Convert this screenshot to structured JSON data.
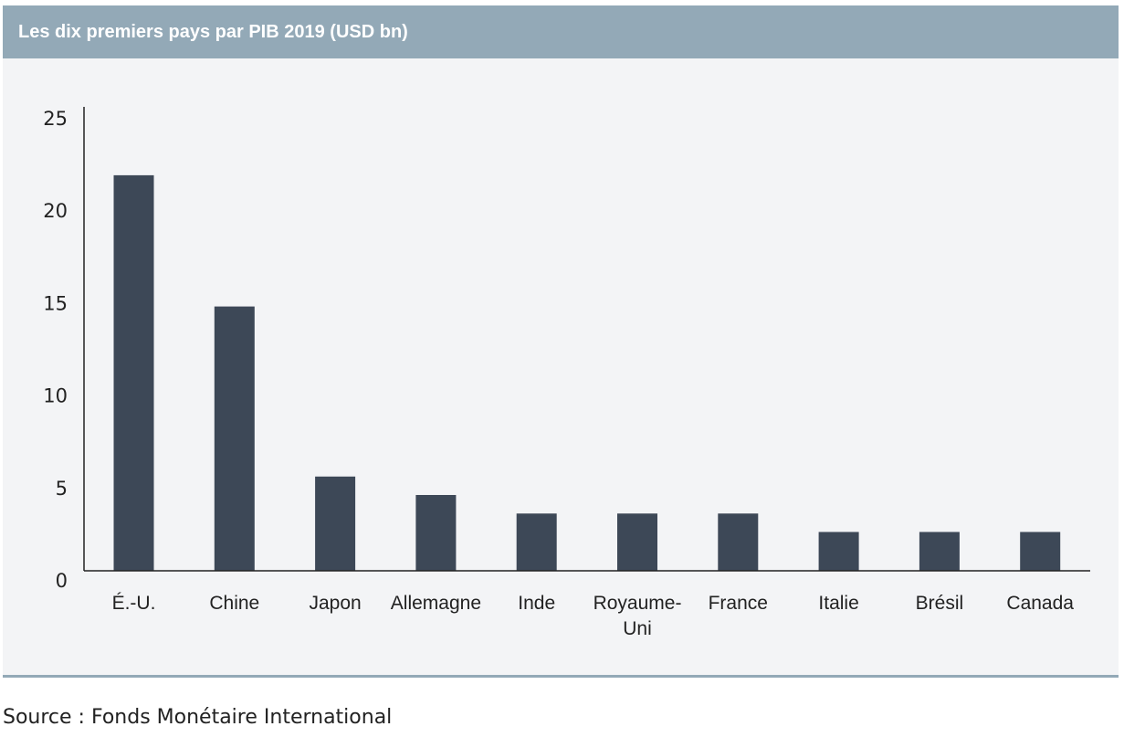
{
  "title": "Les dix premiers pays par PIB 2019 (USD bn)",
  "source": "Source : Fonds Monétaire International",
  "colors": {
    "header": "#93a9b7",
    "panel": "#f3f4f6",
    "bar": "#3d4857",
    "axis": "#222222"
  },
  "chart_data": {
    "type": "bar",
    "categories": [
      "É.-U.",
      "Chine",
      "Japon",
      "Allemagne",
      "Inde",
      "Royaume-Uni",
      "France",
      "Italie",
      "Brésil",
      "Canada"
    ],
    "category_lines": [
      [
        "É.-U."
      ],
      [
        "Chine"
      ],
      [
        "Japon"
      ],
      [
        "Allemagne"
      ],
      [
        "Inde"
      ],
      [
        "Royaume-",
        "Uni"
      ],
      [
        "France"
      ],
      [
        "Italie"
      ],
      [
        "Brésil"
      ],
      [
        "Canada"
      ]
    ],
    "values": [
      21.4,
      14.3,
      5.1,
      4.1,
      3.1,
      3.1,
      3.1,
      2.1,
      2.1,
      2.1
    ],
    "yticks": [
      0,
      5,
      10,
      15,
      20,
      25
    ],
    "ylim": [
      0,
      25
    ],
    "grid": false,
    "legend": "none"
  }
}
